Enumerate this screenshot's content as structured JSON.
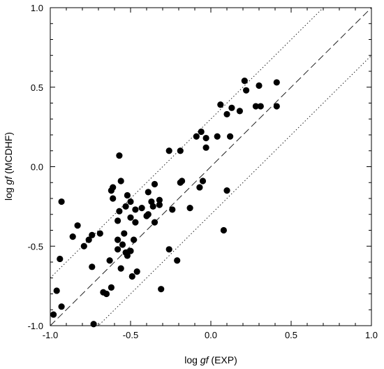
{
  "chart_data": {
    "type": "scatter",
    "xlabel_prefix": "log ",
    "xlabel_italic": "gf",
    "xlabel_suffix": " (EXP)",
    "ylabel_prefix": "log ",
    "ylabel_italic": "gf",
    "ylabel_suffix": " (MCDHF)",
    "xlim": [
      -1.0,
      1.0
    ],
    "ylim": [
      -1.0,
      1.0
    ],
    "xticks": [
      -1.0,
      -0.5,
      0.0,
      0.5,
      1.0
    ],
    "yticks": [
      -1.0,
      -0.5,
      0.0,
      0.5,
      1.0
    ],
    "xtick_labels": [
      "-1.0",
      "-0.5",
      "0.0",
      "0.5",
      "1.0"
    ],
    "ytick_labels": [
      "-1.0",
      "-0.5",
      "0.0",
      "0.5",
      "1.0"
    ],
    "grid": false,
    "reference_lines": [
      {
        "style": "dashed",
        "offset": 0.0
      },
      {
        "style": "dotted",
        "offset": 0.3
      },
      {
        "style": "dotted",
        "offset": -0.3
      }
    ],
    "points": [
      [
        -0.98,
        -0.93
      ],
      [
        -0.96,
        -0.78
      ],
      [
        -0.93,
        -0.88
      ],
      [
        -0.94,
        -0.58
      ],
      [
        -0.93,
        -0.22
      ],
      [
        -0.86,
        -0.44
      ],
      [
        -0.83,
        -0.37
      ],
      [
        -0.79,
        -0.5
      ],
      [
        -0.76,
        -0.46
      ],
      [
        -0.74,
        -0.63
      ],
      [
        -0.74,
        -0.43
      ],
      [
        -0.73,
        -0.99
      ],
      [
        -0.69,
        -0.42
      ],
      [
        -0.67,
        -0.79
      ],
      [
        -0.65,
        -0.8
      ],
      [
        -0.63,
        -0.59
      ],
      [
        -0.62,
        -0.76
      ],
      [
        -0.62,
        -0.15
      ],
      [
        -0.61,
        -0.13
      ],
      [
        -0.61,
        -0.2
      ],
      [
        -0.58,
        -0.34
      ],
      [
        -0.58,
        -0.46
      ],
      [
        -0.58,
        -0.52
      ],
      [
        -0.57,
        -0.28
      ],
      [
        -0.57,
        0.07
      ],
      [
        -0.56,
        -0.09
      ],
      [
        -0.56,
        -0.64
      ],
      [
        -0.55,
        -0.49
      ],
      [
        -0.54,
        -0.42
      ],
      [
        -0.53,
        -0.54
      ],
      [
        -0.53,
        -0.25
      ],
      [
        -0.52,
        -0.56
      ],
      [
        -0.52,
        -0.18
      ],
      [
        -0.5,
        -0.53
      ],
      [
        -0.5,
        -0.32
      ],
      [
        -0.5,
        -0.22
      ],
      [
        -0.49,
        -0.69
      ],
      [
        -0.48,
        -0.46
      ],
      [
        -0.47,
        -0.35
      ],
      [
        -0.47,
        -0.27
      ],
      [
        -0.46,
        -0.66
      ],
      [
        -0.43,
        -0.26
      ],
      [
        -0.4,
        -0.31
      ],
      [
        -0.39,
        -0.16
      ],
      [
        -0.39,
        -0.3
      ],
      [
        -0.37,
        -0.22
      ],
      [
        -0.36,
        -0.25
      ],
      [
        -0.35,
        -0.35
      ],
      [
        -0.35,
        -0.11
      ],
      [
        -0.32,
        -0.21
      ],
      [
        -0.32,
        -0.24
      ],
      [
        -0.31,
        -0.77
      ],
      [
        -0.26,
        -0.52
      ],
      [
        -0.26,
        0.1
      ],
      [
        -0.24,
        -0.27
      ],
      [
        -0.21,
        -0.59
      ],
      [
        -0.19,
        0.1
      ],
      [
        -0.19,
        -0.1
      ],
      [
        -0.18,
        -0.09
      ],
      [
        -0.13,
        -0.26
      ],
      [
        -0.09,
        0.19
      ],
      [
        -0.07,
        -0.13
      ],
      [
        -0.06,
        0.22
      ],
      [
        -0.05,
        -0.09
      ],
      [
        -0.03,
        0.18
      ],
      [
        -0.03,
        0.12
      ],
      [
        0.04,
        0.19
      ],
      [
        0.06,
        0.39
      ],
      [
        0.08,
        -0.4
      ],
      [
        0.1,
        0.33
      ],
      [
        0.1,
        -0.15
      ],
      [
        0.12,
        0.19
      ],
      [
        0.13,
        0.37
      ],
      [
        0.18,
        0.35
      ],
      [
        0.21,
        0.54
      ],
      [
        0.22,
        0.48
      ],
      [
        0.28,
        0.38
      ],
      [
        0.3,
        0.51
      ],
      [
        0.31,
        0.38
      ],
      [
        0.41,
        0.53
      ],
      [
        0.41,
        0.38
      ]
    ]
  }
}
